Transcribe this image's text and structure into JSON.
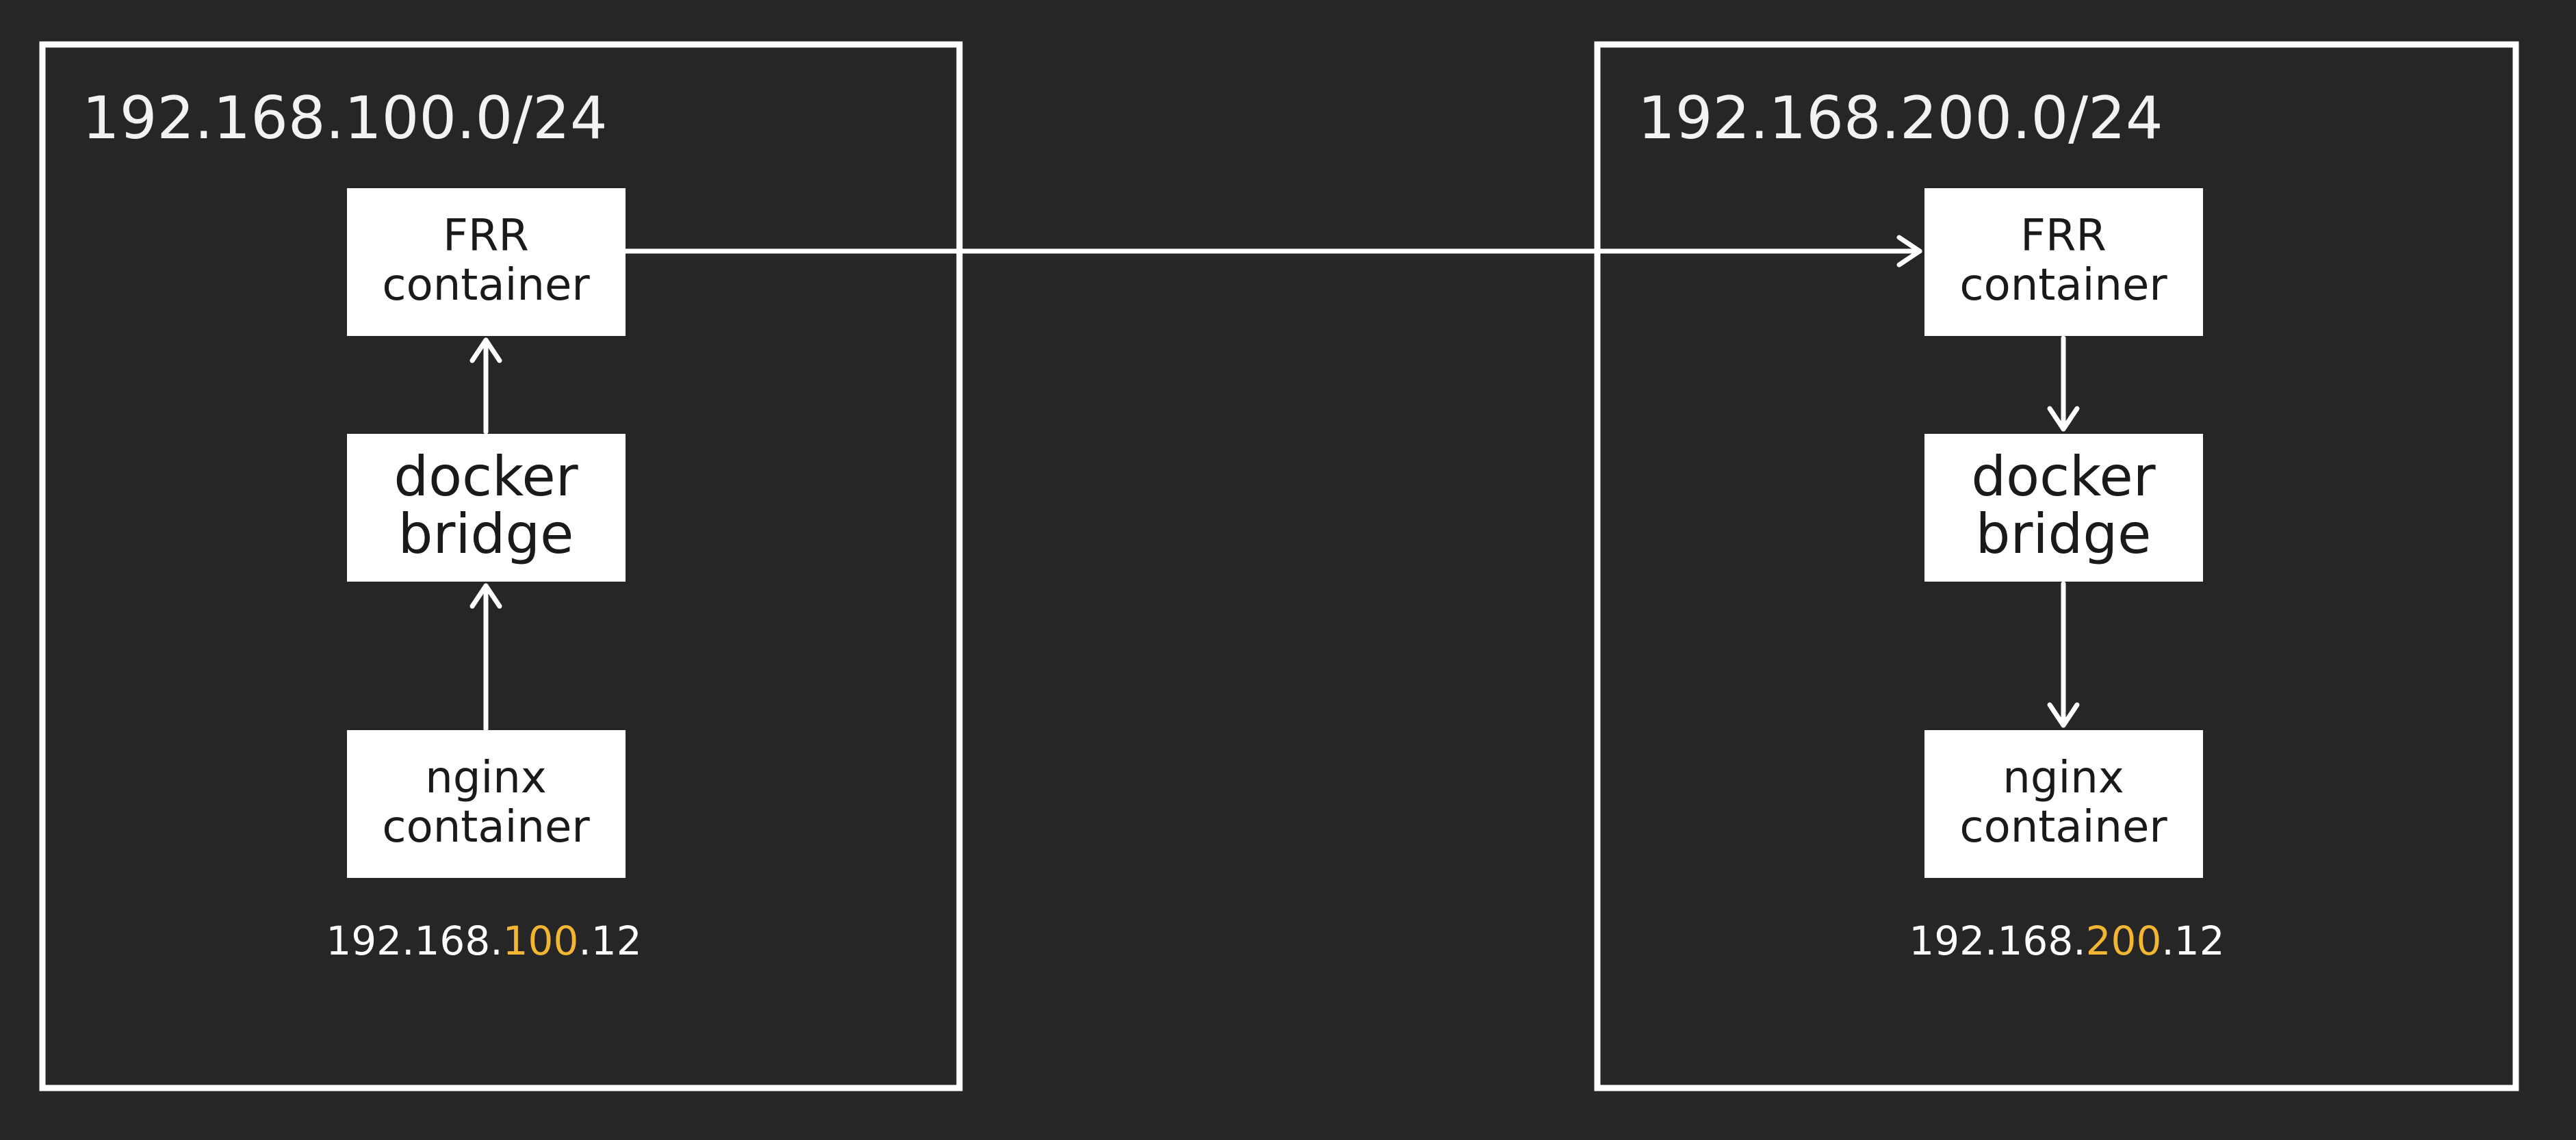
{
  "diagram": {
    "colors": {
      "background": "#262626",
      "stroke": "#ffffff",
      "box_fill": "#ffffff",
      "box_text": "#1a1a1a",
      "highlight": "#f2b632"
    },
    "left": {
      "subnet": "192.168.100.0/24",
      "frr": {
        "line1": "FRR",
        "line2": "container"
      },
      "bridge": {
        "line1": "docker",
        "line2": "bridge"
      },
      "nginx": {
        "line1": "nginx",
        "line2": "container"
      },
      "ip": {
        "prefix": "192.168.",
        "highlight": "100",
        "suffix": ".12"
      }
    },
    "right": {
      "subnet": "192.168.200.0/24",
      "frr": {
        "line1": "FRR",
        "line2": "container"
      },
      "bridge": {
        "line1": "docker",
        "line2": "bridge"
      },
      "nginx": {
        "line1": "nginx",
        "line2": "container"
      },
      "ip": {
        "prefix": "192.168.",
        "highlight": "200",
        "suffix": ".12"
      }
    }
  }
}
